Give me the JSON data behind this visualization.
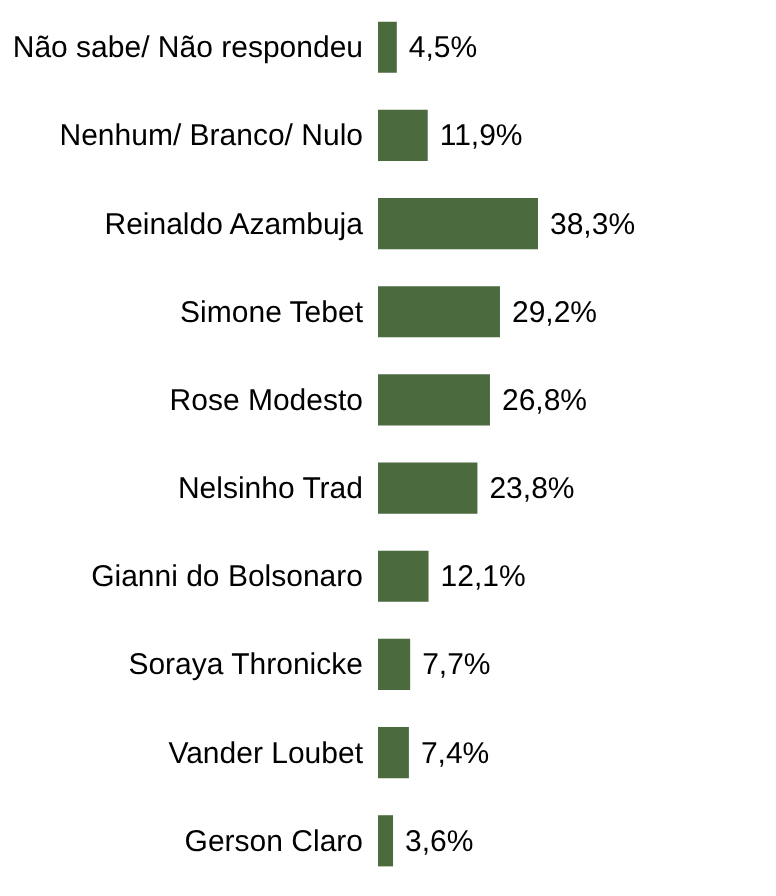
{
  "chart_data": {
    "type": "bar",
    "orientation": "horizontal",
    "categories": [
      "Não sabe/ Não respondeu",
      "Nenhum/ Branco/ Nulo",
      "Reinaldo Azambuja",
      "Simone Tebet",
      "Rose Modesto",
      "Nelsinho Trad",
      "Gianni do Bolsonaro",
      "Soraya Thronicke",
      "Vander Loubet",
      "Gerson Claro"
    ],
    "values": [
      4.5,
      11.9,
      38.3,
      29.2,
      26.8,
      23.8,
      12.1,
      7.7,
      7.4,
      3.6
    ],
    "value_labels": [
      "4,5%",
      "11,9%",
      "38,3%",
      "29,2%",
      "26,8%",
      "23,8%",
      "12,1%",
      "7,7%",
      "7,4%",
      "3,6%"
    ],
    "color": "#4b6b3e"
  }
}
